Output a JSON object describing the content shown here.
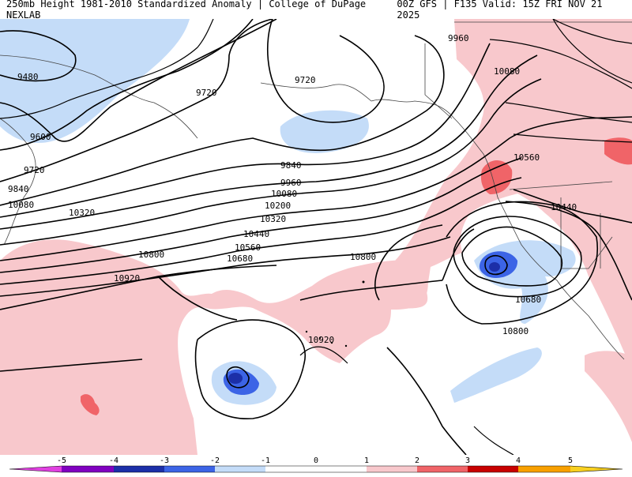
{
  "header": {
    "left_title": "250mb Height 1981-2010 Standardized Anomaly | College of DuPage NEXLAB",
    "right_title": "00Z GFS | F135 Valid: 15Z FRI NOV 21 2025"
  },
  "map": {
    "contour_labels": [
      "9480",
      "9600",
      "9720",
      "9840",
      "10080",
      "10320",
      "9720",
      "9720",
      "9960",
      "10080",
      "9840",
      "9960",
      "10080",
      "10200",
      "10320",
      "10440",
      "10560",
      "10680",
      "10800",
      "10920",
      "10800",
      "10920",
      "10560",
      "10440",
      "10680",
      "10800"
    ]
  },
  "colorbar": {
    "ticks": [
      "-5",
      "-4",
      "-3",
      "-2",
      "-1",
      "0",
      "1",
      "2",
      "3",
      "4",
      "5"
    ],
    "colors": [
      "#e040e0",
      "#8000c0",
      "#1c2fa8",
      "#3c64e6",
      "#c4dcf8",
      "#ffffff",
      "#ffffff",
      "#f8c8cc",
      "#f06468",
      "#c80000",
      "#f8a000",
      "#f8d020"
    ]
  }
}
